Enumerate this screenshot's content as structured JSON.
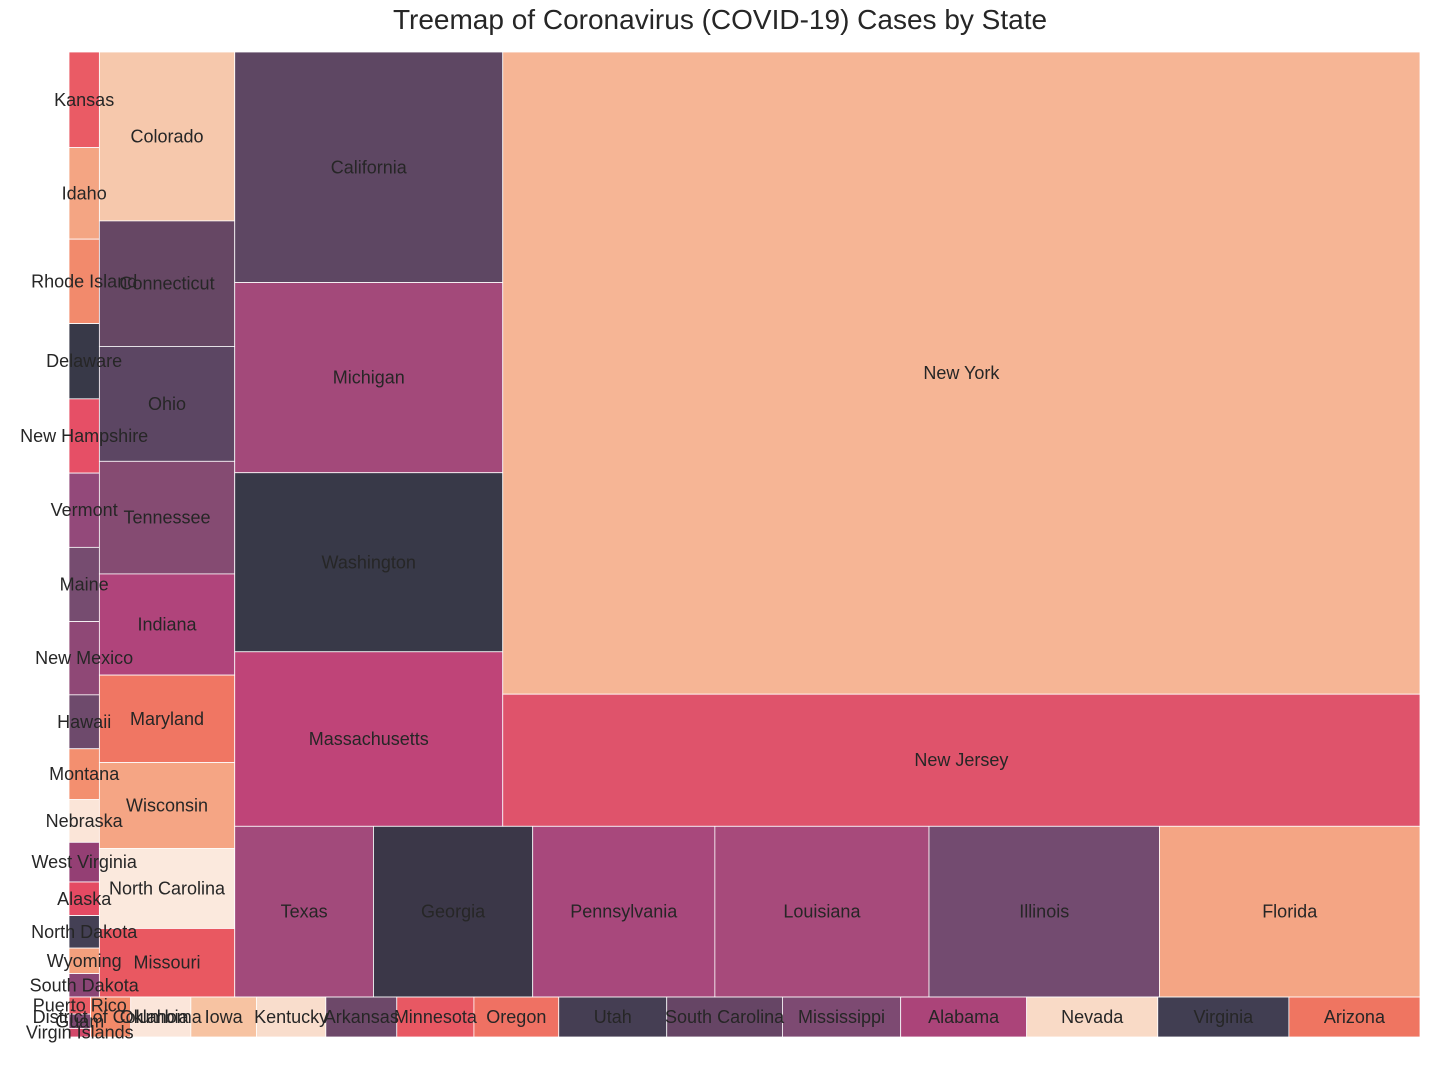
{
  "chart_data": {
    "type": "treemap",
    "title": "Treemap of Coronavirus (COVID-19) Cases by State",
    "value_basis": "relative cell area (estimated from rendered treemap)",
    "items": [
      {
        "label": "New York",
        "value": 572000,
        "color": "#f6b595"
      },
      {
        "label": "New Jersey",
        "value": 117600,
        "color": "#df536b"
      },
      {
        "label": "California",
        "value": 60000,
        "color": "#5e4763"
      },
      {
        "label": "Michigan",
        "value": 49500,
        "color": "#a3497a"
      },
      {
        "label": "Washington",
        "value": 46600,
        "color": "#383948"
      },
      {
        "label": "Massachusetts",
        "value": 45400,
        "color": "#bf4478"
      },
      {
        "label": "Texas",
        "value": 23000,
        "color": "#a24a7b"
      },
      {
        "label": "Georgia",
        "value": 26400,
        "color": "#3b3748"
      },
      {
        "label": "Pennsylvania",
        "value": 30200,
        "color": "#a8487c"
      },
      {
        "label": "Louisiana",
        "value": 35500,
        "color": "#a74a7b"
      },
      {
        "label": "Illinois",
        "value": 38200,
        "color": "#734b70"
      },
      {
        "label": "Florida",
        "value": 43200,
        "color": "#f4a584"
      },
      {
        "label": "Colorado",
        "value": 22200,
        "color": "#f6c8ac"
      },
      {
        "label": "Connecticut",
        "value": 16500,
        "color": "#664764"
      },
      {
        "label": "Ohio",
        "value": 15100,
        "color": "#5c4663"
      },
      {
        "label": "Tennessee",
        "value": 14800,
        "color": "#854b72"
      },
      {
        "label": "Indiana",
        "value": 13300,
        "color": "#b0447b"
      },
      {
        "label": "Maryland",
        "value": 11500,
        "color": "#f07663"
      },
      {
        "label": "Wisconsin",
        "value": 11300,
        "color": "#f5a584"
      },
      {
        "label": "North Carolina",
        "value": 10500,
        "color": "#fbe9dd"
      },
      {
        "label": "Missouri",
        "value": 9000,
        "color": "#e95861"
      },
      {
        "label": "Kansas",
        "value": 2820,
        "color": "#ea5b65"
      },
      {
        "label": "Idaho",
        "value": 2700,
        "color": "#f4a583"
      },
      {
        "label": "Rhode Island",
        "value": 2490,
        "color": "#f28a6c"
      },
      {
        "label": "Delaware",
        "value": 2220,
        "color": "#383948"
      },
      {
        "label": "New Hampshire",
        "value": 2190,
        "color": "#e64f66"
      },
      {
        "label": "Vermont",
        "value": 2190,
        "color": "#93497a"
      },
      {
        "label": "Maine",
        "value": 2190,
        "color": "#764c70"
      },
      {
        "label": "New Mexico",
        "value": 2160,
        "color": "#8f4876"
      },
      {
        "label": "Hawaii",
        "value": 1590,
        "color": "#6e4a6c"
      },
      {
        "label": "Montana",
        "value": 1500,
        "color": "#f38f6f"
      },
      {
        "label": "Nebraska",
        "value": 1260,
        "color": "#fbe5d8"
      },
      {
        "label": "West Virginia",
        "value": 1170,
        "color": "#943f74"
      },
      {
        "label": "Alaska",
        "value": 990,
        "color": "#e44a63"
      },
      {
        "label": "North Dakota",
        "value": 960,
        "color": "#444055"
      },
      {
        "label": "Wyoming",
        "value": 750,
        "color": "#f4a07d"
      },
      {
        "label": "South Dakota",
        "value": 690,
        "color": "#8a4575"
      },
      {
        "label": "Puerto Rico",
        "value": 360,
        "color": "#ea5b65"
      },
      {
        "label": "Guam",
        "value": 300,
        "color": "#7a4770"
      },
      {
        "label": "Virgin Islands",
        "value": 180,
        "color": "#d2496a"
      },
      {
        "label": "District of Columbia",
        "value": 1560,
        "color": "#f38a69"
      },
      {
        "label": "Oklahoma",
        "value": 2340,
        "color": "#fbe6da"
      },
      {
        "label": "Iowa",
        "value": 2550,
        "color": "#f7c3a2"
      },
      {
        "label": "Kentucky",
        "value": 2700,
        "color": "#f9ddcc"
      },
      {
        "label": "Arkansas",
        "value": 2760,
        "color": "#6d4869"
      },
      {
        "label": "Minnesota",
        "value": 3000,
        "color": "#e85863"
      },
      {
        "label": "Oregon",
        "value": 3300,
        "color": "#ef7163"
      },
      {
        "label": "Utah",
        "value": 4200,
        "color": "#453e53"
      },
      {
        "label": "South Carolina",
        "value": 4500,
        "color": "#664565"
      },
      {
        "label": "Mississippi",
        "value": 4600,
        "color": "#7d4a72"
      },
      {
        "label": "Alabama",
        "value": 4900,
        "color": "#ab4479"
      },
      {
        "label": "Nevada",
        "value": 5100,
        "color": "#f9dac6"
      },
      {
        "label": "Virginia",
        "value": 5100,
        "color": "#413e52"
      },
      {
        "label": "Arizona",
        "value": 5100,
        "color": "#ef7561"
      }
    ]
  }
}
